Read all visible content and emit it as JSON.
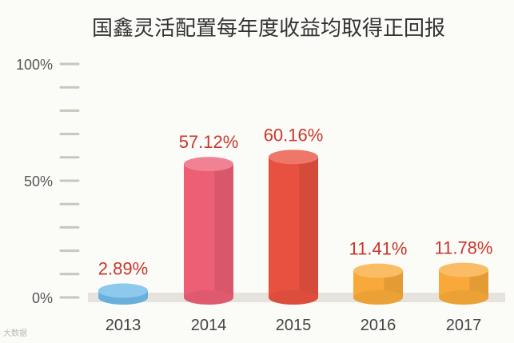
{
  "chart_data": {
    "type": "bar",
    "title": "国鑫灵活配置每年度收益均取得正回报",
    "categories": [
      "2013",
      "2014",
      "2015",
      "2016",
      "2017"
    ],
    "values": [
      2.89,
      57.12,
      60.16,
      11.41,
      11.78
    ],
    "value_labels": [
      "2.89%",
      "57.12%",
      "60.16%",
      "11.41%",
      "11.78%"
    ],
    "y_ticks": [
      "0%",
      "50%",
      "100%"
    ],
    "ylim": [
      0,
      100
    ],
    "xlabel": "",
    "ylabel": "",
    "grid": false,
    "bar_colors": [
      "#6db8e8",
      "#ec5f74",
      "#e8513f",
      "#f8a93a",
      "#f8a93a"
    ],
    "label_color": "#c9372b"
  },
  "watermark": "大数据"
}
